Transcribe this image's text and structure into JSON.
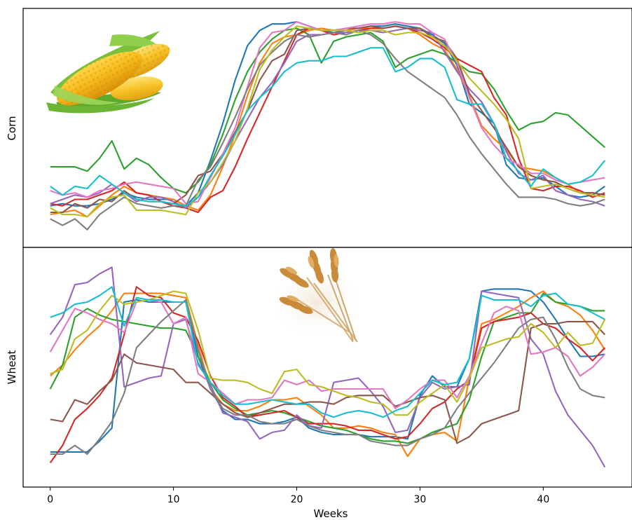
{
  "chart_data": [
    {
      "type": "line",
      "panel": "top",
      "xlabel": "",
      "ylabel": "Corn",
      "xlim": [
        -2.2,
        47.2
      ],
      "ylim": [
        0.0,
        1.0
      ],
      "grid": false,
      "image": "corn-image",
      "x": [
        0,
        1,
        2,
        3,
        4,
        5,
        6,
        7,
        8,
        9,
        10,
        11,
        12,
        13,
        14,
        15,
        16,
        17,
        18,
        19,
        20,
        21,
        22,
        23,
        24,
        25,
        26,
        27,
        28,
        29,
        30,
        31,
        32,
        33,
        34,
        35,
        36,
        37,
        38,
        39,
        40,
        41,
        42,
        43,
        44,
        45
      ],
      "series": [
        {
          "color": "#1f77b4",
          "values": [
            0.14,
            0.15,
            0.14,
            0.14,
            0.15,
            0.17,
            0.2,
            0.18,
            0.17,
            0.17,
            0.17,
            0.14,
            0.2,
            0.35,
            0.52,
            0.72,
            0.88,
            0.95,
            0.98,
            0.98,
            0.99,
            0.97,
            0.95,
            0.94,
            0.95,
            0.96,
            0.97,
            0.97,
            0.98,
            0.97,
            0.96,
            0.93,
            0.89,
            0.79,
            0.61,
            0.57,
            0.52,
            0.33,
            0.27,
            0.26,
            0.27,
            0.23,
            0.19,
            0.18,
            0.19,
            0.23
          ]
        },
        {
          "color": "#ff7f0e",
          "values": [
            0.1,
            0.11,
            0.12,
            0.09,
            0.14,
            0.19,
            0.23,
            0.2,
            0.19,
            0.18,
            0.17,
            0.14,
            0.12,
            0.19,
            0.32,
            0.47,
            0.65,
            0.8,
            0.89,
            0.92,
            0.93,
            0.95,
            0.96,
            0.95,
            0.95,
            0.96,
            0.96,
            0.96,
            0.97,
            0.96,
            0.93,
            0.89,
            0.86,
            0.77,
            0.65,
            0.51,
            0.45,
            0.4,
            0.32,
            0.31,
            0.3,
            0.27,
            0.24,
            0.2,
            0.2,
            0.19
          ]
        },
        {
          "color": "#2ca02c",
          "values": [
            0.32,
            0.32,
            0.32,
            0.3,
            0.36,
            0.44,
            0.31,
            0.36,
            0.33,
            0.27,
            0.22,
            0.2,
            0.25,
            0.33,
            0.47,
            0.63,
            0.76,
            0.85,
            0.91,
            0.95,
            0.96,
            0.93,
            0.8,
            0.9,
            0.92,
            0.93,
            0.94,
            0.9,
            0.78,
            0.82,
            0.84,
            0.86,
            0.84,
            0.8,
            0.76,
            0.75,
            0.68,
            0.58,
            0.49,
            0.52,
            0.53,
            0.57,
            0.56,
            0.51,
            0.46,
            0.41
          ]
        },
        {
          "color": "#d62728",
          "values": [
            0.15,
            0.14,
            0.17,
            0.17,
            0.19,
            0.21,
            0.25,
            0.2,
            0.19,
            0.16,
            0.14,
            0.13,
            0.11,
            0.18,
            0.21,
            0.32,
            0.45,
            0.57,
            0.69,
            0.81,
            0.93,
            0.96,
            0.95,
            0.93,
            0.94,
            0.95,
            0.96,
            0.96,
            0.97,
            0.96,
            0.94,
            0.91,
            0.87,
            0.82,
            0.79,
            0.76,
            0.64,
            0.56,
            0.36,
            0.22,
            0.21,
            0.23,
            0.23,
            0.21,
            0.18,
            0.2
          ]
        },
        {
          "color": "#9467bd",
          "values": [
            0.15,
            0.17,
            0.19,
            0.18,
            0.2,
            0.24,
            0.2,
            0.16,
            0.18,
            0.18,
            0.16,
            0.13,
            0.18,
            0.25,
            0.33,
            0.44,
            0.54,
            0.64,
            0.71,
            0.8,
            0.9,
            0.93,
            0.93,
            0.94,
            0.94,
            0.95,
            0.95,
            0.94,
            0.95,
            0.96,
            0.95,
            0.94,
            0.85,
            0.76,
            0.68,
            0.62,
            0.52,
            0.39,
            0.29,
            0.26,
            0.28,
            0.21,
            0.19,
            0.17,
            0.16,
            0.14
          ]
        },
        {
          "color": "#8c564b",
          "values": [
            0.11,
            0.11,
            0.15,
            0.13,
            0.17,
            0.16,
            0.21,
            0.17,
            0.16,
            0.16,
            0.15,
            0.19,
            0.28,
            0.3,
            0.38,
            0.48,
            0.58,
            0.72,
            0.81,
            0.84,
            0.95,
            0.96,
            0.95,
            0.95,
            0.96,
            0.96,
            0.97,
            0.96,
            0.97,
            0.96,
            0.96,
            0.92,
            0.9,
            0.82,
            0.66,
            0.58,
            0.5,
            0.41,
            0.32,
            0.28,
            0.26,
            0.25,
            0.22,
            0.2,
            0.2,
            0.19
          ]
        },
        {
          "color": "#e377c2",
          "values": [
            0.21,
            0.19,
            0.2,
            0.18,
            0.21,
            0.22,
            0.24,
            0.25,
            0.24,
            0.23,
            0.22,
            0.15,
            0.16,
            0.27,
            0.38,
            0.5,
            0.69,
            0.87,
            0.94,
            0.95,
            0.99,
            0.97,
            0.95,
            0.95,
            0.96,
            0.97,
            0.98,
            0.98,
            0.99,
            0.98,
            0.98,
            0.94,
            0.91,
            0.8,
            0.64,
            0.5,
            0.42,
            0.36,
            0.33,
            0.29,
            0.29,
            0.26,
            0.24,
            0.25,
            0.26,
            0.27
          ]
        },
        {
          "color": "#7f7f7f",
          "values": [
            0.08,
            0.05,
            0.08,
            0.03,
            0.1,
            0.14,
            0.18,
            0.15,
            0.14,
            0.13,
            0.14,
            0.14,
            0.26,
            0.32,
            0.43,
            0.55,
            0.68,
            0.79,
            0.85,
            0.9,
            0.93,
            0.92,
            0.93,
            0.94,
            0.93,
            0.95,
            0.93,
            0.89,
            0.82,
            0.76,
            0.72,
            0.68,
            0.64,
            0.56,
            0.46,
            0.38,
            0.31,
            0.24,
            0.18,
            0.18,
            0.18,
            0.17,
            0.15,
            0.14,
            0.15,
            0.17
          ]
        },
        {
          "color": "#bcbd22",
          "values": [
            0.13,
            0.1,
            0.1,
            0.09,
            0.15,
            0.18,
            0.19,
            0.12,
            0.12,
            0.12,
            0.11,
            0.1,
            0.2,
            0.25,
            0.34,
            0.44,
            0.59,
            0.77,
            0.86,
            0.92,
            0.97,
            0.96,
            0.95,
            0.95,
            0.95,
            0.94,
            0.95,
            0.95,
            0.93,
            0.94,
            0.94,
            0.92,
            0.88,
            0.81,
            0.73,
            0.67,
            0.61,
            0.54,
            0.45,
            0.22,
            0.23,
            0.24,
            0.22,
            0.2,
            0.19,
            0.18
          ]
        },
        {
          "color": "#17becf",
          "values": [
            0.23,
            0.19,
            0.23,
            0.22,
            0.28,
            0.24,
            0.2,
            0.17,
            0.16,
            0.16,
            0.15,
            0.14,
            0.18,
            0.28,
            0.37,
            0.47,
            0.58,
            0.64,
            0.69,
            0.76,
            0.8,
            0.81,
            0.81,
            0.83,
            0.83,
            0.85,
            0.87,
            0.87,
            0.76,
            0.78,
            0.82,
            0.82,
            0.78,
            0.63,
            0.61,
            0.61,
            0.52,
            0.36,
            0.3,
            0.23,
            0.31,
            0.27,
            0.24,
            0.25,
            0.28,
            0.35
          ]
        }
      ]
    },
    {
      "type": "line",
      "panel": "bottom",
      "xlabel": "Weeks",
      "ylabel": "Wheat",
      "xlim": [
        -2.2,
        47.2
      ],
      "ylim": [
        0.0,
        1.0
      ],
      "grid": false,
      "xticks": [
        "0",
        "10",
        "20",
        "30",
        "40"
      ],
      "image": "wheat-image",
      "x": [
        0,
        1,
        2,
        3,
        4,
        5,
        6,
        7,
        8,
        9,
        10,
        11,
        12,
        13,
        14,
        15,
        16,
        17,
        18,
        19,
        20,
        21,
        22,
        23,
        24,
        25,
        26,
        27,
        28,
        29,
        30,
        31,
        32,
        33,
        34,
        35,
        36,
        37,
        38,
        39,
        40,
        41,
        42,
        43,
        44,
        45
      ],
      "series": [
        {
          "color": "#1f77b4",
          "values": [
            0.11,
            0.11,
            0.11,
            0.11,
            0.16,
            0.22,
            0.8,
            0.81,
            0.8,
            0.8,
            0.8,
            0.8,
            0.55,
            0.4,
            0.3,
            0.26,
            0.26,
            0.24,
            0.24,
            0.25,
            0.27,
            0.22,
            0.2,
            0.19,
            0.19,
            0.19,
            0.18,
            0.18,
            0.18,
            0.17,
            0.37,
            0.46,
            0.41,
            0.41,
            0.54,
            0.85,
            0.86,
            0.86,
            0.86,
            0.85,
            0.8,
            0.72,
            0.63,
            0.55,
            0.55,
            0.56
          ]
        },
        {
          "color": "#ff7f0e",
          "values": [
            0.46,
            0.51,
            0.58,
            0.64,
            0.69,
            0.76,
            0.84,
            0.84,
            0.84,
            0.84,
            0.83,
            0.82,
            0.6,
            0.4,
            0.33,
            0.3,
            0.3,
            0.32,
            0.35,
            0.35,
            0.36,
            0.32,
            0.28,
            0.22,
            0.22,
            0.23,
            0.22,
            0.2,
            0.19,
            0.09,
            0.17,
            0.19,
            0.2,
            0.16,
            0.45,
            0.7,
            0.72,
            0.75,
            0.78,
            0.82,
            0.85,
            0.8,
            0.78,
            0.74,
            0.67,
            0.58
          ]
        },
        {
          "color": "#2ca02c",
          "values": [
            0.4,
            0.51,
            0.73,
            0.77,
            0.74,
            0.72,
            0.71,
            0.7,
            0.69,
            0.68,
            0.68,
            0.67,
            0.55,
            0.43,
            0.35,
            0.31,
            0.28,
            0.29,
            0.3,
            0.29,
            0.27,
            0.25,
            0.23,
            0.22,
            0.21,
            0.19,
            0.17,
            0.16,
            0.16,
            0.15,
            0.17,
            0.2,
            0.22,
            0.24,
            0.35,
            0.55,
            0.71,
            0.73,
            0.75,
            0.75,
            0.84,
            0.8,
            0.79,
            0.78,
            0.76,
            0.76
          ]
        },
        {
          "color": "#d62728",
          "values": [
            0.06,
            0.14,
            0.26,
            0.31,
            0.37,
            0.45,
            0.65,
            0.87,
            0.83,
            0.82,
            0.75,
            0.73,
            0.62,
            0.46,
            0.36,
            0.32,
            0.27,
            0.28,
            0.29,
            0.3,
            0.27,
            0.24,
            0.24,
            0.24,
            0.23,
            0.21,
            0.21,
            0.19,
            0.17,
            0.18,
            0.24,
            0.31,
            0.34,
            0.4,
            0.44,
            0.68,
            0.71,
            0.72,
            0.73,
            0.75,
            0.7,
            0.68,
            0.63,
            0.59,
            0.53,
            0.59
          ]
        },
        {
          "color": "#9467bd",
          "values": [
            0.65,
            0.73,
            0.88,
            0.89,
            0.93,
            0.96,
            0.41,
            0.43,
            0.45,
            0.46,
            0.7,
            0.72,
            0.52,
            0.42,
            0.29,
            0.27,
            0.25,
            0.17,
            0.2,
            0.21,
            0.28,
            0.23,
            0.22,
            0.43,
            0.44,
            0.45,
            0.39,
            0.32,
            0.2,
            0.21,
            0.36,
            0.43,
            0.4,
            0.41,
            0.42,
            0.85,
            0.84,
            0.83,
            0.82,
            0.63,
            0.56,
            0.39,
            0.28,
            0.21,
            0.14,
            0.04
          ]
        },
        {
          "color": "#8c564b",
          "values": [
            0.26,
            0.25,
            0.35,
            0.33,
            0.39,
            0.44,
            0.56,
            0.52,
            0.51,
            0.5,
            0.49,
            0.43,
            0.43,
            0.38,
            0.33,
            0.29,
            0.27,
            0.29,
            0.31,
            0.33,
            0.33,
            0.34,
            0.34,
            0.33,
            0.36,
            0.37,
            0.37,
            0.37,
            0.32,
            0.34,
            0.36,
            0.37,
            0.35,
            0.15,
            0.18,
            0.24,
            0.26,
            0.28,
            0.3,
            0.68,
            0.7,
            0.7,
            0.71,
            0.71,
            0.71,
            0.65
          ]
        },
        {
          "color": "#e377c2",
          "values": [
            0.57,
            0.67,
            0.77,
            0.75,
            0.72,
            0.7,
            0.66,
            0.8,
            0.81,
            0.8,
            0.7,
            0.73,
            0.47,
            0.43,
            0.38,
            0.33,
            0.35,
            0.35,
            0.36,
            0.44,
            0.42,
            0.44,
            0.39,
            0.4,
            0.4,
            0.4,
            0.4,
            0.4,
            0.31,
            0.35,
            0.4,
            0.44,
            0.44,
            0.36,
            0.46,
            0.61,
            0.75,
            0.78,
            0.76,
            0.56,
            0.57,
            0.59,
            0.55,
            0.46,
            0.5,
            0.56
          ]
        },
        {
          "color": "#7f7f7f",
          "values": [
            0.1,
            0.1,
            0.14,
            0.1,
            0.17,
            0.25,
            0.38,
            0.59,
            0.65,
            0.71,
            0.76,
            0.81,
            0.58,
            0.4,
            0.31,
            0.28,
            0.28,
            0.25,
            0.24,
            0.24,
            0.26,
            0.23,
            0.21,
            0.2,
            0.19,
            0.19,
            0.16,
            0.15,
            0.14,
            0.14,
            0.17,
            0.19,
            0.22,
            0.31,
            0.38,
            0.45,
            0.52,
            0.6,
            0.68,
            0.72,
            0.73,
            0.63,
            0.5,
            0.4,
            0.37,
            0.36
          ]
        },
        {
          "color": "#bcbd22",
          "values": [
            0.47,
            0.49,
            0.63,
            0.67,
            0.76,
            0.83,
            0.79,
            0.8,
            0.81,
            0.83,
            0.85,
            0.84,
            0.67,
            0.45,
            0.44,
            0.44,
            0.43,
            0.4,
            0.38,
            0.48,
            0.49,
            0.42,
            0.41,
            0.39,
            0.37,
            0.36,
            0.34,
            0.33,
            0.28,
            0.28,
            0.34,
            0.38,
            0.42,
            0.34,
            0.45,
            0.59,
            0.61,
            0.63,
            0.64,
            0.7,
            0.66,
            0.59,
            0.66,
            0.6,
            0.61,
            0.72
          ]
        },
        {
          "color": "#17becf",
          "values": [
            0.73,
            0.75,
            0.79,
            0.8,
            0.83,
            0.87,
            0.69,
            0.82,
            0.81,
            0.81,
            0.8,
            0.8,
            0.51,
            0.43,
            0.37,
            0.33,
            0.33,
            0.34,
            0.35,
            0.34,
            0.33,
            0.33,
            0.29,
            0.27,
            0.29,
            0.3,
            0.29,
            0.27,
            0.3,
            0.32,
            0.38,
            0.44,
            0.42,
            0.43,
            0.54,
            0.83,
            0.81,
            0.81,
            0.81,
            0.78,
            0.83,
            0.84,
            0.79,
            0.78,
            0.75,
            0.72
          ]
        }
      ]
    }
  ]
}
